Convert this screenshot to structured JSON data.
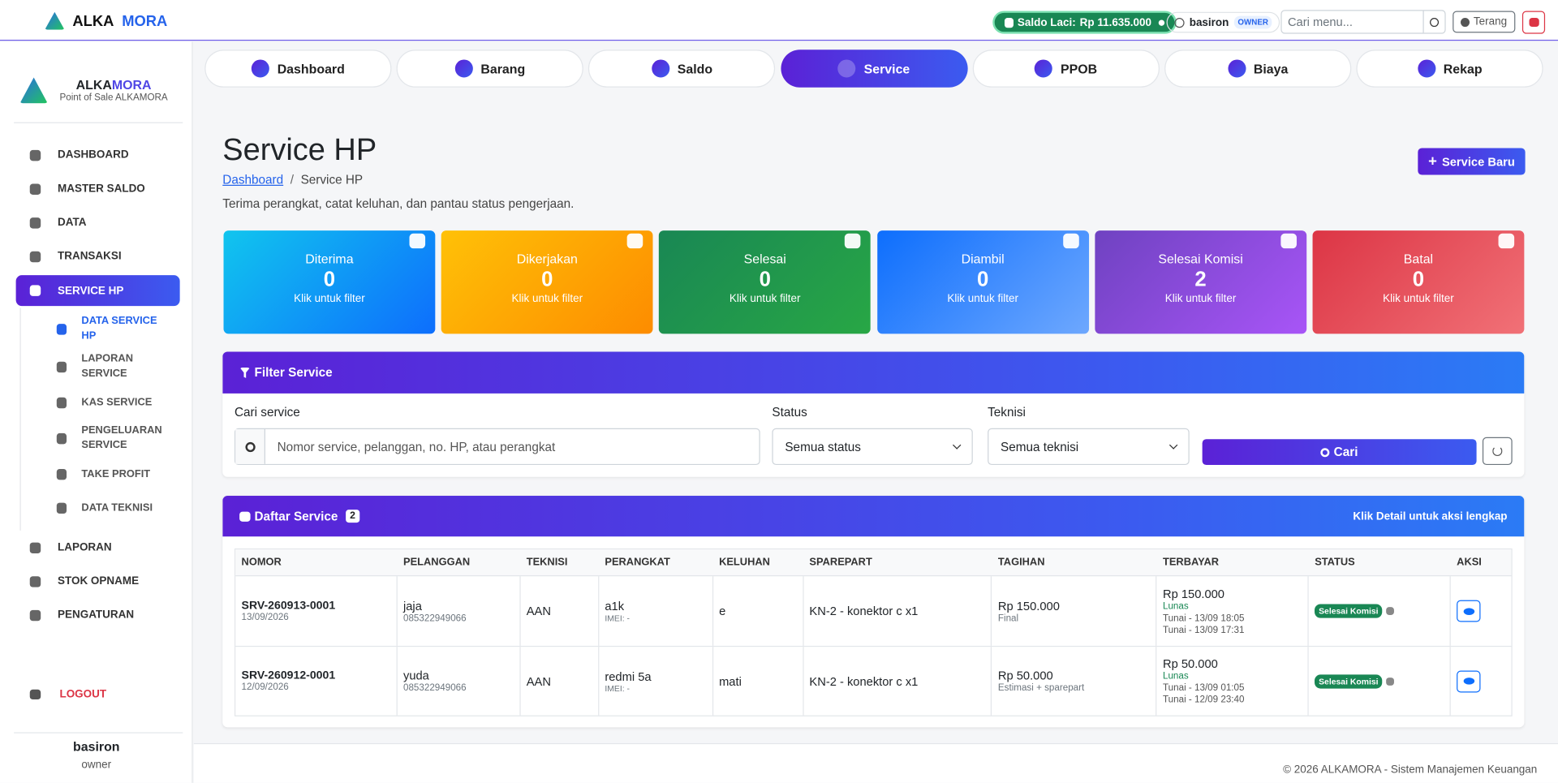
{
  "header": {
    "brand": [
      "ALKA",
      "MORA"
    ],
    "saldo_label": "Saldo Laci:",
    "saldo_value": "Rp 11.635.000",
    "user": "basiron",
    "role": "OWNER",
    "search_placeholder": "Cari menu...",
    "theme": "Terang"
  },
  "tabs": {
    "items": [
      "Dashboard",
      "Barang",
      "Saldo",
      "Service",
      "PPOB",
      "Biaya",
      "Rekap"
    ],
    "active": 3
  },
  "sidebar": {
    "brand": [
      "ALKA",
      "MORA"
    ],
    "subtitle": "Point of Sale ALKAMORA",
    "menu": [
      {
        "label": "DASHBOARD"
      },
      {
        "label": "MASTER SALDO"
      },
      {
        "label": "DATA"
      },
      {
        "label": "TRANSAKSI"
      },
      {
        "label": "SERVICE HP",
        "active": true,
        "children": [
          {
            "label": "DATA SERVICE HP",
            "active": true
          },
          {
            "label": "LAPORAN SERVICE"
          },
          {
            "label": "KAS SERVICE"
          },
          {
            "label": "PENGELUARAN SERVICE"
          },
          {
            "label": "TAKE PROFIT"
          },
          {
            "label": "DATA TEKNISI"
          }
        ]
      },
      {
        "label": "LAPORAN"
      },
      {
        "label": "STOK OPNAME"
      },
      {
        "label": "PENGATURAN"
      }
    ],
    "logout": "LOGOUT",
    "user": "basiron",
    "role": "owner"
  },
  "page": {
    "title": "Service HP",
    "breadcrumb": [
      "Dashboard",
      "Service HP"
    ],
    "description": "Terima perangkat, catat keluhan, dan pantau status pengerjaan.",
    "new_button": "Service Baru"
  },
  "stats": {
    "hint": "Klik untuk filter",
    "cards": [
      {
        "label": "Diterima",
        "value": 0,
        "color": [
          "#11c5ee",
          "#0d6efd"
        ]
      },
      {
        "label": "Dikerjakan",
        "value": 0,
        "color": [
          "#ffc107",
          "#fd8c00"
        ]
      },
      {
        "label": "Selesai",
        "value": 0,
        "color": [
          "#198754",
          "#28a745"
        ]
      },
      {
        "label": "Diambil",
        "value": 0,
        "color": [
          "#0d6efd",
          "#6ea8fe"
        ]
      },
      {
        "label": "Selesai Komisi",
        "value": 2,
        "color": [
          "#6f42c1",
          "#a855f7"
        ]
      },
      {
        "label": "Batal",
        "value": 0,
        "color": [
          "#dc3545",
          "#f17177"
        ]
      }
    ]
  },
  "filter": {
    "title": "Filter Service",
    "search_label": "Cari service",
    "search_placeholder": "Nomor service, pelanggan, no. HP, atau perangkat",
    "status_label": "Status",
    "status_value": "Semua status",
    "teknisi_label": "Teknisi",
    "teknisi_value": "Semua teknisi",
    "button": "Cari"
  },
  "list": {
    "title": "Daftar Service",
    "count": 2,
    "note": "Klik Detail untuk aksi lengkap",
    "headers": [
      "NOMOR",
      "PELANGGAN",
      "TEKNISI",
      "PERANGKAT",
      "KELUHAN",
      "SPAREPART",
      "TAGIHAN",
      "TERBAYAR",
      "STATUS",
      "AKSI"
    ],
    "rows": [
      {
        "nomor": "SRV-260913-0001",
        "tanggal": "13/09/2026",
        "pelanggan": "jaja",
        "hp": "085322949066",
        "teknisi": "AAN",
        "perangkat": "a1k",
        "imei": "IMEI: -",
        "keluhan": "e",
        "sparepart": "KN-2 - konektor c x1",
        "tagihan": "Rp 150.000",
        "tagihan_note": "Final",
        "terbayar": "Rp 150.000",
        "lunas": "Lunas",
        "payments": [
          "Tunai - 13/09 18:05",
          "Tunai - 13/09 17:31"
        ],
        "status": "Selesai Komisi"
      },
      {
        "nomor": "SRV-260912-0001",
        "tanggal": "12/09/2026",
        "pelanggan": "yuda",
        "hp": "085322949066",
        "teknisi": "AAN",
        "perangkat": "redmi 5a",
        "imei": "IMEI: -",
        "keluhan": "mati",
        "sparepart": "KN-2 - konektor c x1",
        "tagihan": "Rp 50.000",
        "tagihan_note": "Estimasi + sparepart",
        "terbayar": "Rp 50.000",
        "lunas": "Lunas",
        "payments": [
          "Tunai - 13/09 01:05",
          "Tunai - 12/09 23:40"
        ],
        "status": "Selesai Komisi"
      }
    ]
  },
  "footer": "© 2026 ALKAMORA - Sistem Manajemen Keuangan"
}
